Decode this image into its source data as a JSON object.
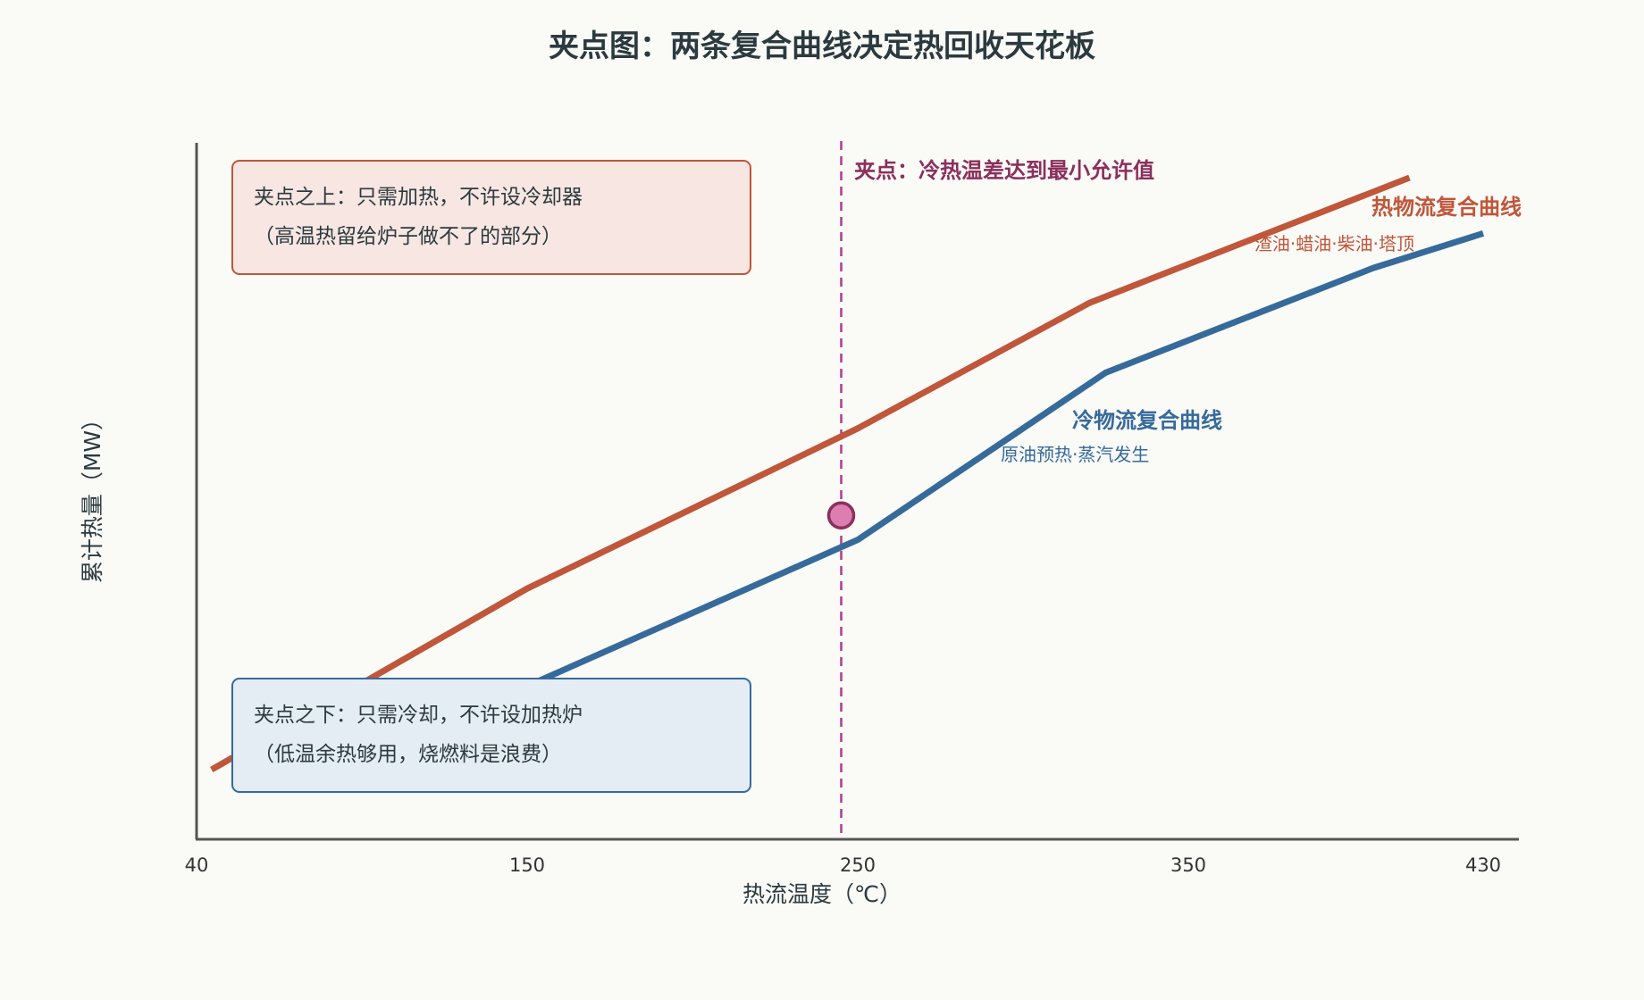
{
  "chart_data": {
    "type": "line",
    "title": "夹点图：两条复合曲线决定热回收天花板",
    "xlabel": "热流温度（℃）",
    "ylabel": "累计热量（MW）",
    "xticks": [
      40,
      150,
      250,
      350,
      430
    ],
    "xlim": [
      40,
      444
    ],
    "ylim": [
      0,
      100
    ],
    "series": [
      {
        "name": "热物流复合曲线",
        "subtitle": "渣油·蜡油·柴油·塔顶",
        "color": "#c0563a",
        "x": [
          45,
          150,
          250,
          320,
          410
        ],
        "y": [
          10,
          36,
          59,
          77,
          95
        ]
      },
      {
        "name": "冷物流复合曲线",
        "subtitle": "原油预热·蒸汽发生",
        "color": "#366a9b",
        "x": [
          150,
          250,
          325,
          400,
          430
        ],
        "y": [
          22,
          43,
          67,
          82,
          87
        ]
      }
    ],
    "pinch": {
      "x": 245,
      "y": 46.5,
      "label": "夹点：冷热温差达到最小允许值",
      "color": "#b03a8e"
    },
    "annotations": {
      "above": {
        "line1": "夹点之上：只需加热，不许设冷却器",
        "line2": "（高温热留给炉子做不了的部分）"
      },
      "below": {
        "line1": "夹点之下：只需冷却，不许设加热炉",
        "line2": "（低温余热够用，烧燃料是浪费）"
      }
    },
    "grid": false,
    "legend": "inline"
  }
}
